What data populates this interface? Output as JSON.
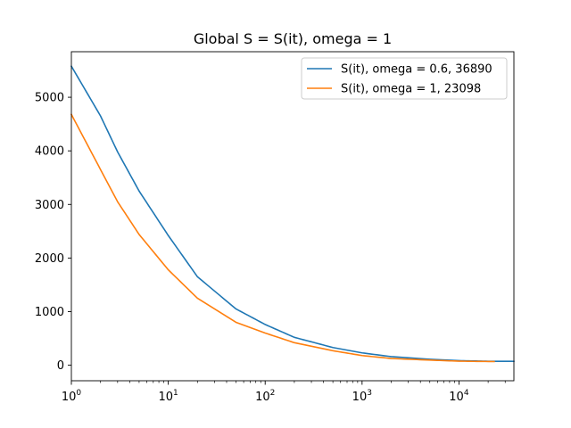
{
  "chart_data": {
    "type": "line",
    "title": "Global S = S(it), omega = 1",
    "xlabel": "",
    "ylabel": "",
    "x_scale": "log",
    "xlim": [
      1,
      36890
    ],
    "ylim": [
      -290,
      5850
    ],
    "x_ticks": [
      {
        "value": 1,
        "base": "10",
        "exp": "0"
      },
      {
        "value": 10,
        "base": "10",
        "exp": "1"
      },
      {
        "value": 100,
        "base": "10",
        "exp": "2"
      },
      {
        "value": 1000,
        "base": "10",
        "exp": "3"
      },
      {
        "value": 10000,
        "base": "10",
        "exp": "4"
      }
    ],
    "y_ticks": [
      0,
      1000,
      2000,
      3000,
      4000,
      5000
    ],
    "grid": false,
    "legend_position": "top-right",
    "series": [
      {
        "name": "S(it), omega = 0.6, 36890",
        "color": "#1f77b4",
        "points": [
          [
            1,
            5580
          ],
          [
            2,
            4650
          ],
          [
            3,
            3980
          ],
          [
            5,
            3250
          ],
          [
            10,
            2420
          ],
          [
            20,
            1650
          ],
          [
            50,
            1050
          ],
          [
            100,
            760
          ],
          [
            200,
            520
          ],
          [
            500,
            330
          ],
          [
            1000,
            230
          ],
          [
            2000,
            160
          ],
          [
            5000,
            110
          ],
          [
            10000,
            85
          ],
          [
            20000,
            74
          ],
          [
            36890,
            72
          ]
        ]
      },
      {
        "name": "S(it), omega = 1, 23098",
        "color": "#ff7f0e",
        "points": [
          [
            1,
            4680
          ],
          [
            2,
            3650
          ],
          [
            3,
            3050
          ],
          [
            5,
            2440
          ],
          [
            10,
            1780
          ],
          [
            20,
            1250
          ],
          [
            50,
            800
          ],
          [
            100,
            600
          ],
          [
            200,
            420
          ],
          [
            500,
            270
          ],
          [
            1000,
            180
          ],
          [
            2000,
            125
          ],
          [
            5000,
            95
          ],
          [
            10000,
            75
          ],
          [
            23098,
            68
          ]
        ]
      }
    ]
  }
}
